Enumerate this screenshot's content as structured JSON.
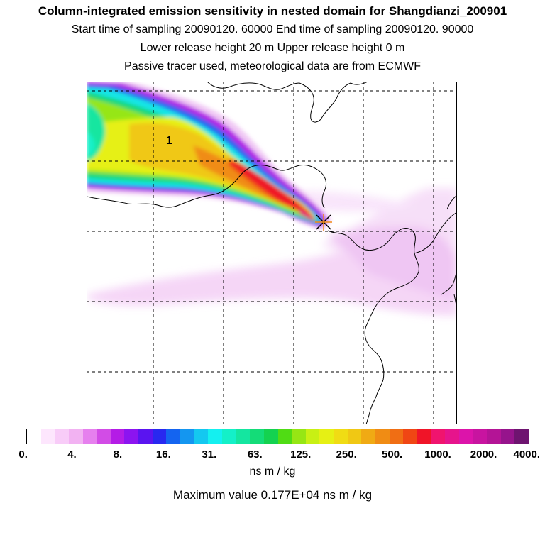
{
  "title": "Column-integrated emission sensitivity in nested domain for Shangdianzi_200901",
  "subtitle_1": "Start time of sampling 20090120. 60000     End time of sampling 20090120. 90000",
  "subtitle_2": "Lower release height   20 m          Upper release height    0 m",
  "subtitle_3": "Passive tracer used, meteorological data are from ECMWF",
  "map": {
    "annotation": "1",
    "receptor_marker": "asterisk-marker",
    "grid": "dashed"
  },
  "colorbar": {
    "colors": [
      "#ffffff",
      "#fde6fd",
      "#f8ccf8",
      "#f2b2f2",
      "#e680ee",
      "#d24ce6",
      "#b41ce6",
      "#8c14f0",
      "#5a14f0",
      "#2828f0",
      "#1464f0",
      "#1496f0",
      "#14c8f0",
      "#14f0f0",
      "#14f0c8",
      "#14e6a0",
      "#14dc78",
      "#14d250",
      "#50dc14",
      "#96e614",
      "#c8f014",
      "#e6f014",
      "#f0dc14",
      "#f0c814",
      "#f0aa14",
      "#f08c14",
      "#f06e14",
      "#f04614",
      "#f01428",
      "#f0146e",
      "#e6148c",
      "#dc14aa",
      "#c814a0",
      "#b41496",
      "#96148c",
      "#6e1470"
    ],
    "tick_labels": [
      "0.",
      "4.",
      "8.",
      "16.",
      "31.",
      "63.",
      "125.",
      "250.",
      "500.",
      "1000.",
      "2000.",
      "4000."
    ],
    "unit": "ns m / kg"
  },
  "max_value_text": "Maximum value  0.177E+04 ns m / kg"
}
